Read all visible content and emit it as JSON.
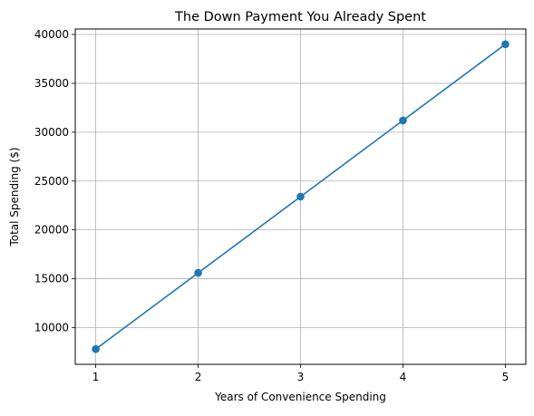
{
  "chart_data": {
    "type": "line",
    "title": "The Down Payment You Already Spent",
    "xlabel": "Years of Convenience Spending",
    "ylabel": "Total Spending ($)",
    "x": [
      1,
      2,
      3,
      4,
      5
    ],
    "series": [
      {
        "values": [
          7800,
          15600,
          23400,
          31200,
          39000
        ],
        "color": "#1f77b4",
        "marker": "circle"
      }
    ],
    "x_ticks": [
      1,
      2,
      3,
      4,
      5
    ],
    "y_ticks": [
      10000,
      15000,
      20000,
      25000,
      30000,
      35000,
      40000
    ],
    "xlim": [
      0.8,
      5.2
    ],
    "ylim": [
      6240,
      40560
    ],
    "grid": true,
    "grid_color": "#b0b0b0",
    "legend": false
  }
}
